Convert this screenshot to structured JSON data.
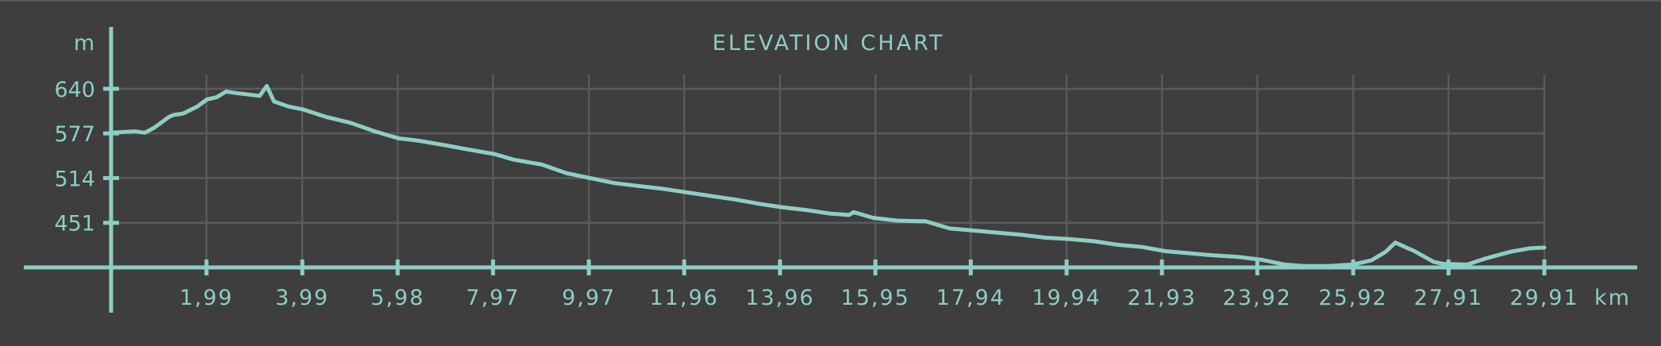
{
  "colors": {
    "background": "#3e3e3e",
    "grid": "#5a5a5a",
    "accent": "#8ecdc4"
  },
  "chart_data": {
    "type": "line",
    "title": "ELEVATION CHART",
    "ylabel": "m",
    "xlabel": "km",
    "xlim": [
      0,
      29.91
    ],
    "ylim": [
      388,
      660
    ],
    "grid": true,
    "x_tick_labels": [
      "1,99",
      "3,99",
      "5,98",
      "7,97",
      "9,97",
      "11,96",
      "13,96",
      "15,95",
      "17,94",
      "19,94",
      "21,93",
      "23,92",
      "25,92",
      "27,91",
      "29,91"
    ],
    "y_tick_labels": [
      "640",
      "577",
      "514",
      "451"
    ],
    "x_ticks": [
      1.99,
      3.99,
      5.98,
      7.97,
      9.97,
      11.96,
      13.96,
      15.95,
      17.94,
      19.94,
      21.93,
      23.92,
      25.92,
      27.91,
      29.91
    ],
    "y_ticks": [
      640,
      577,
      514,
      451
    ],
    "series": [
      {
        "x": [
          0,
          0.5,
          0.7,
          0.9,
          1.2,
          1.3,
          1.5,
          1.8,
          2.0,
          2.2,
          2.4,
          2.6,
          3.1,
          3.25,
          3.4,
          3.7,
          4.0,
          4.5,
          5.0,
          5.5,
          6.0,
          6.4,
          7.0,
          7.4,
          8.0,
          8.4,
          9.0,
          9.5,
          10.0,
          10.5,
          11.0,
          11.5,
          12.0,
          12.5,
          13.0,
          13.5,
          14.0,
          14.5,
          15.0,
          15.4,
          15.5,
          15.9,
          16.4,
          17.0,
          17.5,
          18.0,
          18.5,
          19.0,
          19.5,
          20.0,
          20.5,
          21.0,
          21.5,
          22.0,
          22.5,
          23.0,
          23.5,
          24.0,
          24.5,
          24.9,
          25.4,
          25.9,
          26.3,
          26.6,
          26.8,
          27.2,
          27.6,
          27.8,
          28.3,
          28.7,
          29.2,
          29.6,
          29.91
        ],
        "y": [
          578,
          580,
          578,
          585,
          600,
          603,
          605,
          615,
          625,
          628,
          636,
          634,
          630,
          644,
          622,
          615,
          611,
          600,
          592,
          580,
          570,
          567,
          560,
          555,
          548,
          540,
          533,
          521,
          514,
          507,
          503,
          499,
          494,
          489,
          484,
          478,
          473,
          469,
          464,
          462,
          466,
          458,
          454,
          453,
          443,
          440,
          437,
          434,
          430,
          428,
          425,
          420,
          417,
          411,
          408,
          405,
          403,
          399,
          392,
          390,
          390,
          392,
          398,
          410,
          423,
          411,
          396,
          393,
          392,
          401,
          410,
          415,
          416
        ]
      }
    ]
  }
}
